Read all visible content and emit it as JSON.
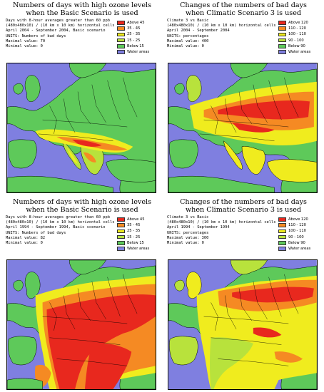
{
  "panels": [
    {
      "title_line1": "Numbers of days with high ozone levels",
      "title_line2": "when the Basic Scenario is used",
      "info": [
        "Days with 8-hour averages greater than 60 ppb",
        "(480x480x10) / (10 km x 10 km) horizontal cells",
        "April 2004 - September 2004, Basic scenario",
        "UNITS: Numbers of bad days",
        "Maximal value:  70",
        "Minimal value:    0"
      ],
      "legend": [
        {
          "label": "Above  45",
          "color": "#e8281e"
        },
        {
          "label": "35 -  45",
          "color": "#f58a23"
        },
        {
          "label": "25 -  35",
          "color": "#f0ec1e"
        },
        {
          "label": "15 -  25",
          "color": "#b8e23c"
        },
        {
          "label": "Below  15",
          "color": "#5ec95a"
        },
        {
          "label": "Water areas",
          "color": "#7f7fe0"
        }
      ]
    },
    {
      "title_line1": "Changes of the numbers of bad days",
      "title_line2": "when Climatic Scenario 3 is used",
      "info": [
        "Climate 3 vs Basic",
        "(480x480x10) / (10 km x 10 km) horizontal cells",
        "April 2004 - September 2004",
        "UNITS: percentages",
        "Maximal value:  400",
        "Minimal value:    0"
      ],
      "legend": [
        {
          "label": "Above  120",
          "color": "#e8281e"
        },
        {
          "label": "110 -  120",
          "color": "#f58a23"
        },
        {
          "label": "100 -  110",
          "color": "#f0ec1e"
        },
        {
          "label": "90 -  100",
          "color": "#b8e23c"
        },
        {
          "label": "Below  90",
          "color": "#5ec95a"
        },
        {
          "label": "Water areas",
          "color": "#7f7fe0"
        }
      ]
    },
    {
      "title_line1": "Numbers of days with high ozone levels",
      "title_line2": "when the Basic Scenario is used",
      "info": [
        "Days with 8-hour averages greater than 60 ppb",
        "(480x480x10) / (10 km x 10 km) horizontal cells",
        "April 1994 - September 1994, Basic scenario",
        "UNITS: Numbers of bad days",
        "Maximal value:  82",
        "Minimal value:    0"
      ],
      "legend": [
        {
          "label": "Above  45",
          "color": "#e8281e"
        },
        {
          "label": "35 -  45",
          "color": "#f58a23"
        },
        {
          "label": "25 -  35",
          "color": "#f0ec1e"
        },
        {
          "label": "15 -  25",
          "color": "#b8e23c"
        },
        {
          "label": "Below  15",
          "color": "#5ec95a"
        },
        {
          "label": "Water areas",
          "color": "#7f7fe0"
        }
      ]
    },
    {
      "title_line1": "Changes of the numbers of bad days",
      "title_line2": "when Climatic Scenario 3 is used",
      "info": [
        "Climate 3 vs Basic",
        "(480x480x10) / (10 km x 10 km) horizontal cells",
        "April 1994 - September 1994",
        "UNITS: percentages",
        "Maximal value:  300",
        "Minimal value:    0"
      ],
      "legend": [
        {
          "label": "Above  120",
          "color": "#e8281e"
        },
        {
          "label": "110 -  120",
          "color": "#f58a23"
        },
        {
          "label": "100 -  110",
          "color": "#f0ec1e"
        },
        {
          "label": "90 -  100",
          "color": "#b8e23c"
        },
        {
          "label": "Below  90",
          "color": "#5ec95a"
        },
        {
          "label": "Water areas",
          "color": "#7f7fe0"
        }
      ]
    }
  ]
}
